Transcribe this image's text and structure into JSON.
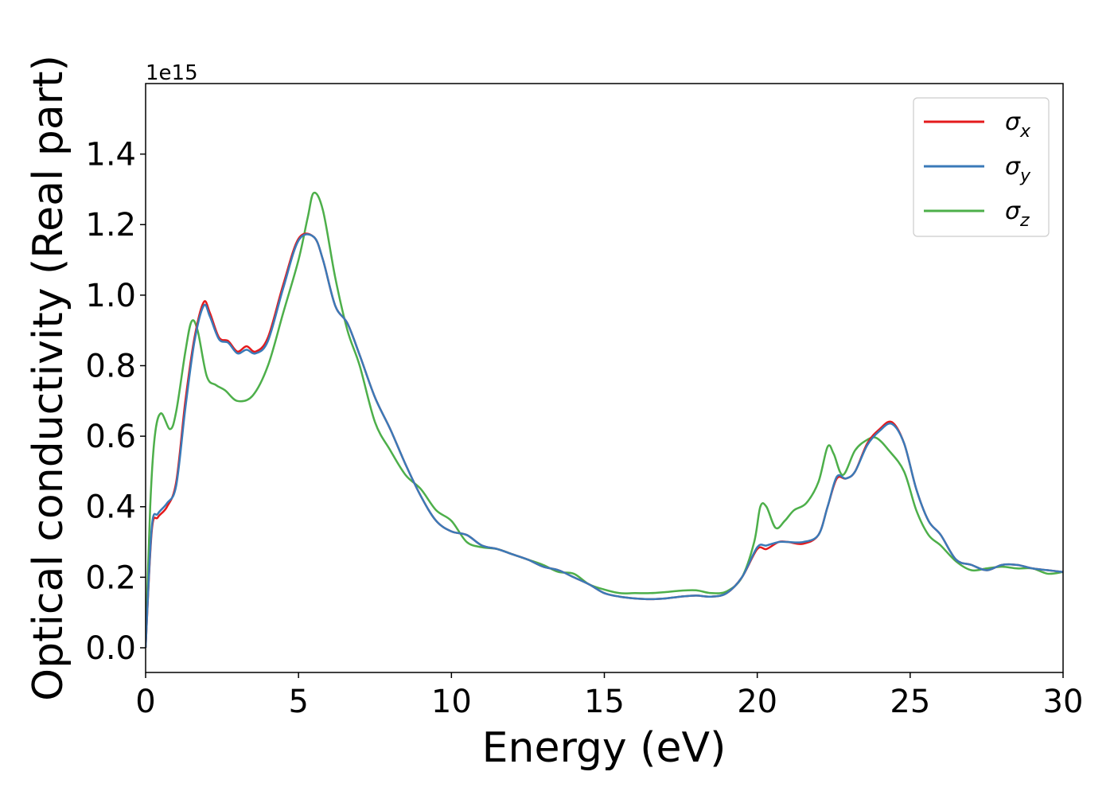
{
  "chart_data": {
    "type": "line",
    "xlabel": "Energy (eV)",
    "ylabel": "Optical conductivity (Real part)",
    "y_offset_label": "1e15",
    "xlim": [
      0,
      30
    ],
    "ylim": [
      -0.07,
      1.6
    ],
    "x_ticks": [
      0,
      5,
      10,
      15,
      20,
      25,
      30
    ],
    "x_tick_labels": [
      "0",
      "5",
      "10",
      "15",
      "20",
      "25",
      "30"
    ],
    "y_ticks": [
      0.0,
      0.2,
      0.4,
      0.6,
      0.8,
      1.0,
      1.2,
      1.4
    ],
    "y_tick_labels": [
      "0.0",
      "0.2",
      "0.4",
      "0.6",
      "0.8",
      "1.0",
      "1.2",
      "1.4"
    ],
    "grid": false,
    "legend_position": "top-right",
    "series": [
      {
        "name": "σx",
        "symbol": "σ",
        "subscript": "x",
        "color": "#e41a1c",
        "x": [
          0,
          0.2,
          0.4,
          0.7,
          1.0,
          1.3,
          1.6,
          1.9,
          2.1,
          2.4,
          2.7,
          3.0,
          3.3,
          3.6,
          4.0,
          4.5,
          5.0,
          5.5,
          5.8,
          6.2,
          6.6,
          7.0,
          7.5,
          8.0,
          8.5,
          9.0,
          9.5,
          10.0,
          10.5,
          11.0,
          11.5,
          12.0,
          12.5,
          13.0,
          13.5,
          14.0,
          14.5,
          15.0,
          15.5,
          16.0,
          16.5,
          17.0,
          17.5,
          18.0,
          18.5,
          19.0,
          19.5,
          20.0,
          20.3,
          20.7,
          21.0,
          21.5,
          22.0,
          22.3,
          22.6,
          22.9,
          23.2,
          23.6,
          24.0,
          24.4,
          24.8,
          25.2,
          25.6,
          26.0,
          26.5,
          27.0,
          27.5,
          28.0,
          28.5,
          29.0,
          29.5,
          30.0
        ],
        "y": [
          0.0,
          0.33,
          0.37,
          0.4,
          0.47,
          0.7,
          0.88,
          0.98,
          0.95,
          0.88,
          0.87,
          0.84,
          0.855,
          0.84,
          0.88,
          1.03,
          1.16,
          1.165,
          1.1,
          0.97,
          0.92,
          0.83,
          0.71,
          0.62,
          0.52,
          0.43,
          0.36,
          0.33,
          0.32,
          0.29,
          0.28,
          0.265,
          0.25,
          0.23,
          0.22,
          0.2,
          0.18,
          0.155,
          0.145,
          0.14,
          0.138,
          0.14,
          0.145,
          0.148,
          0.145,
          0.155,
          0.2,
          0.28,
          0.28,
          0.3,
          0.3,
          0.295,
          0.32,
          0.4,
          0.48,
          0.48,
          0.5,
          0.58,
          0.62,
          0.64,
          0.58,
          0.45,
          0.36,
          0.32,
          0.25,
          0.235,
          0.22,
          0.235,
          0.235,
          0.225,
          0.22,
          0.215
        ]
      },
      {
        "name": "σy",
        "symbol": "σ",
        "subscript": "y",
        "color": "#3a7ab8",
        "x": [
          0,
          0.2,
          0.4,
          0.7,
          1.0,
          1.3,
          1.6,
          1.9,
          2.1,
          2.4,
          2.7,
          3.0,
          3.3,
          3.6,
          4.0,
          4.5,
          5.0,
          5.5,
          5.8,
          6.2,
          6.6,
          7.0,
          7.5,
          8.0,
          8.5,
          9.0,
          9.5,
          10.0,
          10.5,
          11.0,
          11.5,
          12.0,
          12.5,
          13.0,
          13.5,
          14.0,
          14.5,
          15.0,
          15.5,
          16.0,
          16.5,
          17.0,
          17.5,
          18.0,
          18.5,
          19.0,
          19.5,
          20.0,
          20.3,
          20.7,
          21.0,
          21.5,
          22.0,
          22.3,
          22.6,
          22.9,
          23.2,
          23.6,
          24.0,
          24.4,
          24.8,
          25.2,
          25.6,
          26.0,
          26.5,
          27.0,
          27.5,
          28.0,
          28.5,
          29.0,
          29.5,
          30.0
        ],
        "y": [
          0.0,
          0.34,
          0.38,
          0.41,
          0.46,
          0.68,
          0.87,
          0.97,
          0.94,
          0.875,
          0.865,
          0.835,
          0.845,
          0.835,
          0.87,
          1.02,
          1.155,
          1.165,
          1.1,
          0.97,
          0.92,
          0.83,
          0.71,
          0.62,
          0.52,
          0.43,
          0.36,
          0.33,
          0.32,
          0.29,
          0.28,
          0.265,
          0.25,
          0.23,
          0.22,
          0.2,
          0.18,
          0.155,
          0.145,
          0.14,
          0.138,
          0.14,
          0.145,
          0.148,
          0.145,
          0.155,
          0.2,
          0.285,
          0.29,
          0.3,
          0.3,
          0.3,
          0.32,
          0.4,
          0.485,
          0.48,
          0.5,
          0.575,
          0.615,
          0.635,
          0.58,
          0.45,
          0.36,
          0.32,
          0.25,
          0.235,
          0.22,
          0.235,
          0.235,
          0.225,
          0.22,
          0.215
        ]
      },
      {
        "name": "σz",
        "symbol": "σ",
        "subscript": "z",
        "color": "#4daf4a",
        "x": [
          0,
          0.15,
          0.3,
          0.5,
          0.8,
          1.0,
          1.3,
          1.5,
          1.7,
          2.0,
          2.3,
          2.6,
          3.0,
          3.5,
          4.0,
          4.5,
          5.0,
          5.3,
          5.5,
          5.8,
          6.2,
          6.6,
          7.0,
          7.5,
          8.0,
          8.5,
          9.0,
          9.5,
          10.0,
          10.5,
          11.0,
          11.5,
          12.0,
          12.5,
          13.0,
          13.5,
          14.0,
          14.5,
          15.0,
          15.5,
          16.0,
          16.5,
          17.0,
          17.5,
          18.0,
          18.5,
          19.0,
          19.5,
          19.9,
          20.1,
          20.3,
          20.6,
          20.9,
          21.2,
          21.6,
          22.0,
          22.3,
          22.5,
          22.8,
          23.2,
          23.6,
          23.9,
          24.3,
          24.8,
          25.2,
          25.6,
          26.0,
          26.5,
          27.0,
          27.5,
          28.0,
          28.5,
          29.0,
          29.5,
          30.0
        ],
        "y": [
          0.0,
          0.4,
          0.6,
          0.665,
          0.62,
          0.67,
          0.84,
          0.925,
          0.9,
          0.77,
          0.745,
          0.73,
          0.7,
          0.715,
          0.8,
          0.95,
          1.1,
          1.22,
          1.29,
          1.24,
          1.05,
          0.9,
          0.8,
          0.64,
          0.56,
          0.49,
          0.45,
          0.39,
          0.36,
          0.3,
          0.285,
          0.28,
          0.265,
          0.25,
          0.235,
          0.215,
          0.21,
          0.18,
          0.165,
          0.155,
          0.155,
          0.155,
          0.158,
          0.162,
          0.163,
          0.155,
          0.16,
          0.2,
          0.3,
          0.4,
          0.4,
          0.34,
          0.36,
          0.39,
          0.41,
          0.47,
          0.57,
          0.55,
          0.49,
          0.56,
          0.59,
          0.595,
          0.56,
          0.5,
          0.39,
          0.32,
          0.29,
          0.245,
          0.22,
          0.225,
          0.23,
          0.225,
          0.225,
          0.21,
          0.215
        ]
      }
    ]
  }
}
